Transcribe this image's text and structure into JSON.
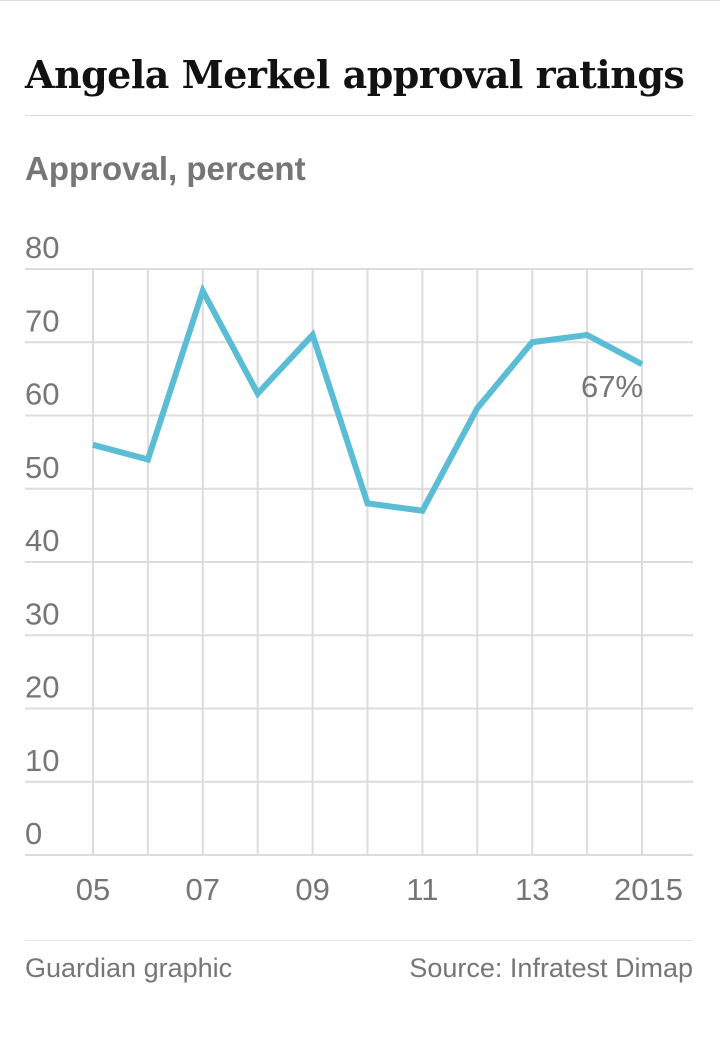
{
  "title": "Angela Merkel approval ratings",
  "subtitle": "Approval, percent",
  "footer": {
    "credit": "Guardian graphic",
    "source": "Source: Infratest Dimap"
  },
  "colors": {
    "line": "#5bbcd6",
    "text_muted": "#767676",
    "grid": "#dcdcdc",
    "title": "#121212"
  },
  "chart_data": {
    "type": "line",
    "title": "Angela Merkel approval ratings",
    "ylabel": "Approval, percent",
    "xlabel": "",
    "x": [
      2005,
      2006,
      2007,
      2008,
      2009,
      2010,
      2011,
      2012,
      2013,
      2014,
      2015
    ],
    "series": [
      {
        "values": [
          56,
          54,
          77,
          63,
          71,
          48,
          47,
          61,
          70,
          71,
          67
        ]
      }
    ],
    "ylim": [
      0,
      80
    ],
    "yticks": [
      0,
      10,
      20,
      30,
      40,
      50,
      60,
      70,
      80
    ],
    "xticks": [
      2005,
      2007,
      2009,
      2011,
      2013,
      2015
    ],
    "xtick_labels": [
      "05",
      "07",
      "09",
      "11",
      "13",
      "2015"
    ],
    "grid": true,
    "annotations": [
      {
        "x": 2015,
        "y": 67,
        "text": "67%"
      }
    ]
  }
}
